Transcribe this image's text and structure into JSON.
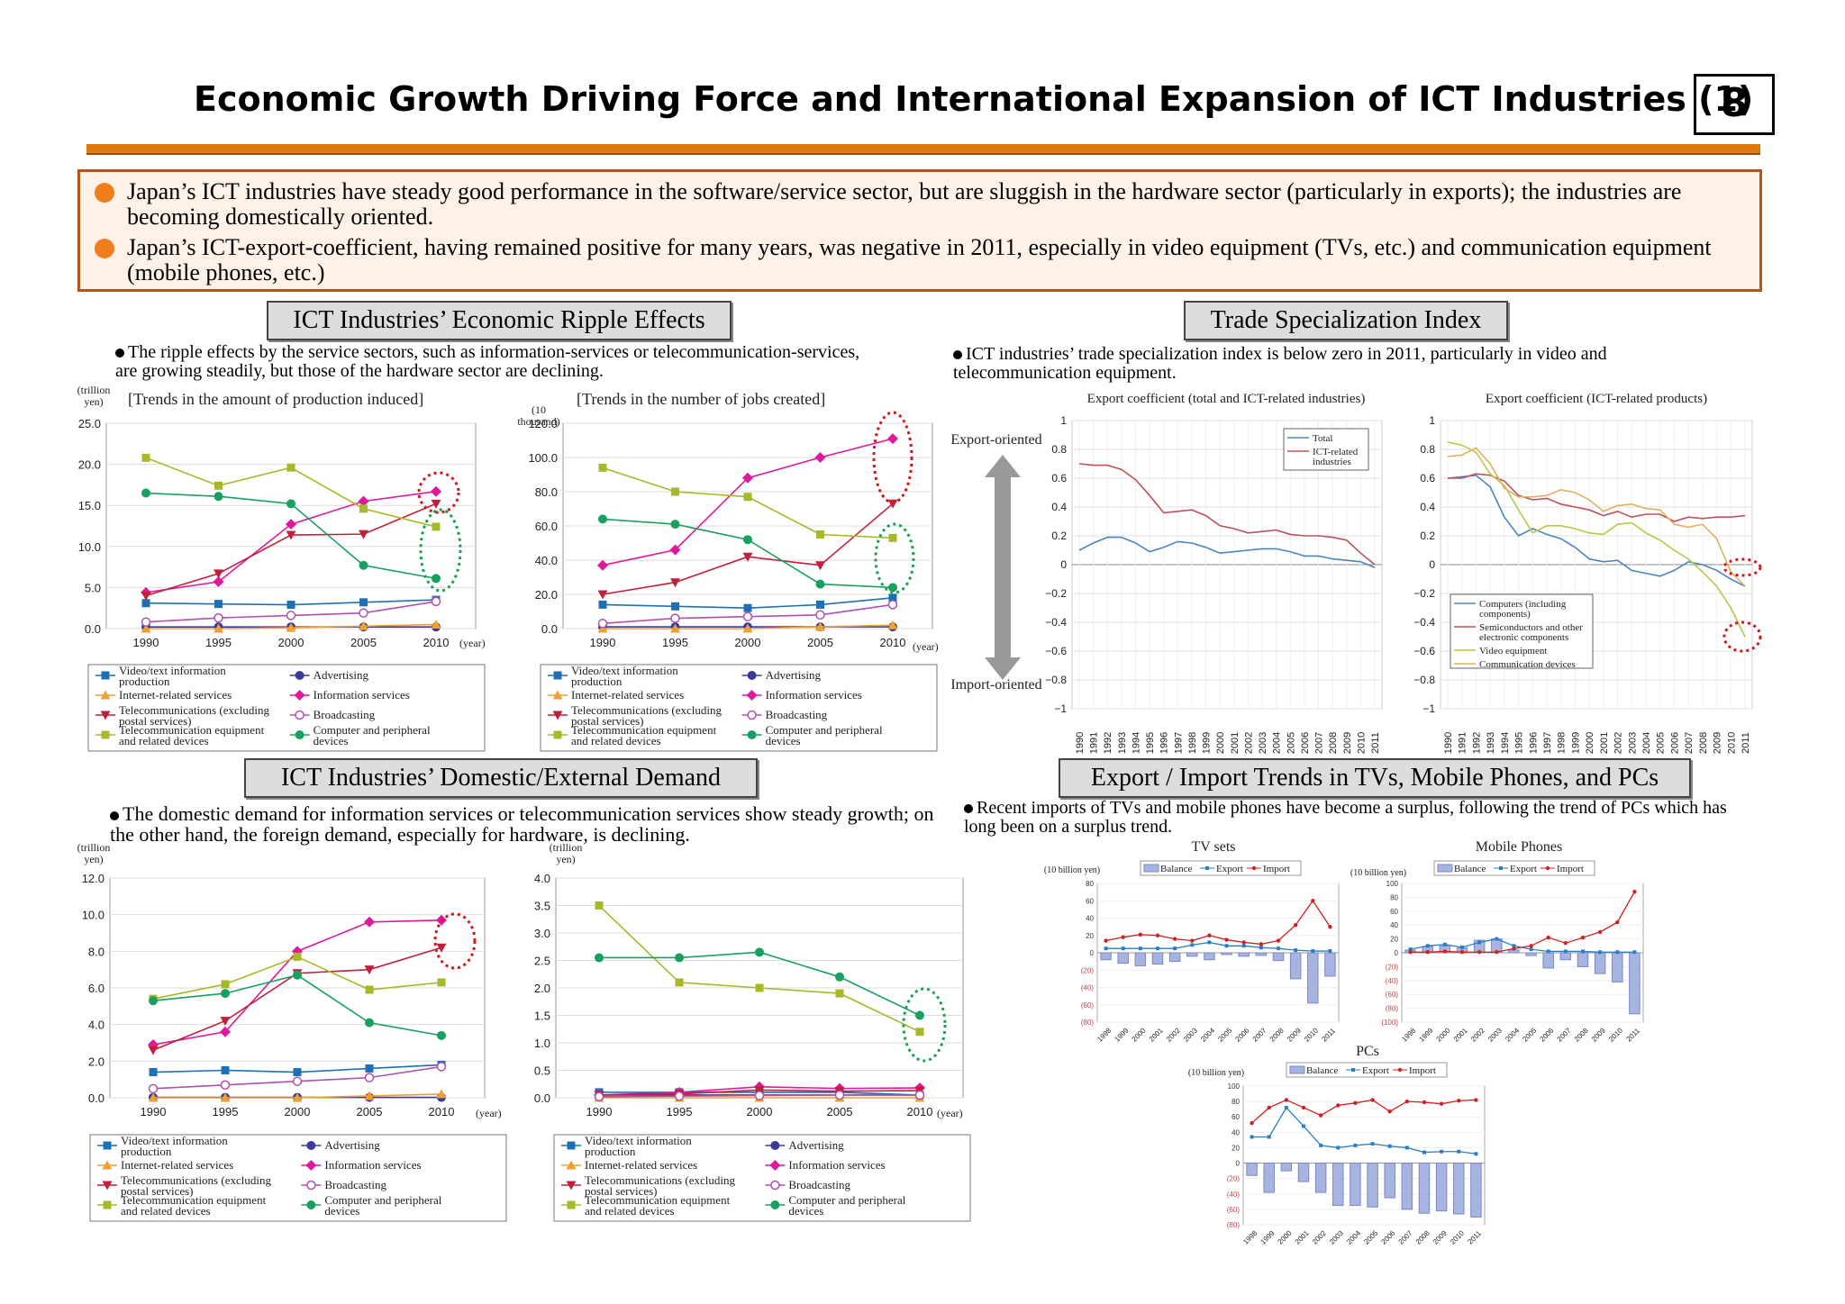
{
  "title": "Economic Growth Driving Force and International Expansion of ICT Industries (1)",
  "page_number": "8",
  "summary": [
    "Japan’s ICT industries have steady good performance in the software/service sector, but are sluggish in the hardware sector (particularly in exports); the industries are becoming domestically oriented.",
    "Japan’s ICT-export-coefficient, having remained positive for many years, was negative in 2011, especially in video equipment (TVs, etc.) and communication equipment (mobile phones, etc.)"
  ],
  "sections": {
    "ripple": {
      "heading": "ICT Industries’ Economic Ripple Effects",
      "note": "The ripple effects by the service sectors, such as information-services or telecommunication-services, are growing steadily, but those of the hardware sector are declining."
    },
    "trade": {
      "heading": "Trade Specialization Index",
      "note": "ICT industries’ trade specialization index is below zero in 2011, particularly in video and telecommunication equipment.",
      "export_oriented": "Export-oriented",
      "import_oriented": "Import-oriented"
    },
    "demand": {
      "heading": "ICT Industries’ Domestic/External Demand",
      "note": "The domestic demand for information services or telecommunication services show steady growth; on the other hand, the foreign demand, especially for hardware, is declining."
    },
    "trends": {
      "heading": "Export / Import Trends in TVs, Mobile Phones, and PCs",
      "note": "Recent imports of TVs and mobile phones have become a surplus, following the trend of PCs which has long been on a surplus trend."
    }
  },
  "legend_sectors": [
    {
      "label": "Video/text information production",
      "color": "#1f6fb5",
      "marker": "square"
    },
    {
      "label": "Advertising",
      "color": "#3a3aa0",
      "marker": "circle"
    },
    {
      "label": "Internet-related services",
      "color": "#f0a030",
      "marker": "triangle"
    },
    {
      "label": "Information services",
      "color": "#e0199a",
      "marker": "diamond"
    },
    {
      "label": "Telecommunications (excluding postal services)",
      "color": "#c0203a",
      "marker": "tridown"
    },
    {
      "label": "Broadcasting",
      "color": "#b050b0",
      "marker": "opencircle"
    },
    {
      "label": "Telecommunication equipment and related devices",
      "color": "#a8b828",
      "marker": "square"
    },
    {
      "label": "Computer and peripheral devices",
      "color": "#18a060",
      "marker": "circle"
    }
  ],
  "chart_data": [
    {
      "id": "production",
      "type": "line",
      "title": "[Trends in the amount of production induced]",
      "unit": "(trillion yen)",
      "xlabel": "(year)",
      "x": [
        1990,
        1995,
        2000,
        2005,
        2010
      ],
      "ylim": [
        0,
        25
      ],
      "yticks": [
        "0.0",
        "5.0",
        "10.0",
        "15.0",
        "20.0",
        "25.0"
      ],
      "series": [
        {
          "name": "Video/text information production",
          "values": [
            3.1,
            3.0,
            2.9,
            3.2,
            3.5
          ]
        },
        {
          "name": "Advertising",
          "values": [
            0.2,
            0.2,
            0.2,
            0.2,
            0.2
          ]
        },
        {
          "name": "Internet-related services",
          "values": [
            0,
            0,
            0.1,
            0.3,
            0.5
          ]
        },
        {
          "name": "Information services",
          "values": [
            4.4,
            5.7,
            12.7,
            15.5,
            16.7
          ]
        },
        {
          "name": "Telecommunications (excluding postal services)",
          "values": [
            4.0,
            6.7,
            11.4,
            11.5,
            15.2
          ]
        },
        {
          "name": "Broadcasting",
          "values": [
            0.8,
            1.3,
            1.6,
            1.9,
            3.3
          ]
        },
        {
          "name": "Telecommunication equipment and related devices",
          "values": [
            20.8,
            17.4,
            19.6,
            14.6,
            12.4
          ]
        },
        {
          "name": "Computer and peripheral devices",
          "values": [
            16.5,
            16.1,
            15.2,
            7.7,
            6.1
          ]
        }
      ]
    },
    {
      "id": "jobs",
      "type": "line",
      "title": "[Trends in the number of jobs created]",
      "unit": "(10 thousand)",
      "xlabel": "(year)",
      "x": [
        1990,
        1995,
        2000,
        2005,
        2010
      ],
      "ylim": [
        0,
        120
      ],
      "yticks": [
        "0.0",
        "20.0",
        "40.0",
        "60.0",
        "80.0",
        "100.0",
        "120.0"
      ],
      "series": [
        {
          "name": "Video/text information production",
          "values": [
            14,
            13,
            12,
            14,
            18
          ]
        },
        {
          "name": "Advertising",
          "values": [
            1,
            1,
            1,
            1,
            1
          ]
        },
        {
          "name": "Internet-related services",
          "values": [
            0,
            0,
            0,
            1,
            2
          ]
        },
        {
          "name": "Information services",
          "values": [
            37,
            46,
            88,
            100,
            111
          ]
        },
        {
          "name": "Telecommunications (excluding postal services)",
          "values": [
            20,
            27,
            42,
            37,
            73
          ]
        },
        {
          "name": "Broadcasting",
          "values": [
            3,
            6,
            7,
            8,
            14
          ]
        },
        {
          "name": "Telecommunication equipment and related devices",
          "values": [
            94,
            80,
            77,
            55,
            53
          ]
        },
        {
          "name": "Computer and peripheral devices",
          "values": [
            64,
            61,
            52,
            26,
            24
          ]
        }
      ]
    },
    {
      "id": "tsi-total",
      "type": "line",
      "title": "Export coefficient (total and ICT-related industries)",
      "x": [
        "1990",
        "1991",
        "1992",
        "1993",
        "1994",
        "1995",
        "1996",
        "1997",
        "1998",
        "1999",
        "2000",
        "2001",
        "2002",
        "2003",
        "2004",
        "2005",
        "2006",
        "2007",
        "2008",
        "2009",
        "2010",
        "2011"
      ],
      "ylim": [
        -1,
        1
      ],
      "yticks": [
        "−1",
        "−0.8",
        "−0.6",
        "−0.4",
        "−0.2",
        "0",
        "0.2",
        "0.4",
        "0.6",
        "0.8",
        "1"
      ],
      "series": [
        {
          "name": "Total",
          "color": "#4a86c0",
          "values": [
            0.1,
            0.15,
            0.19,
            0.19,
            0.15,
            0.09,
            0.12,
            0.16,
            0.15,
            0.12,
            0.08,
            0.09,
            0.1,
            0.11,
            0.11,
            0.09,
            0.06,
            0.06,
            0.04,
            0.03,
            0.02,
            -0.02
          ]
        },
        {
          "name": "ICT-related industries",
          "color": "#c0505a",
          "values": [
            0.7,
            0.69,
            0.69,
            0.66,
            0.59,
            0.48,
            0.36,
            0.37,
            0.38,
            0.34,
            0.27,
            0.25,
            0.22,
            0.23,
            0.24,
            0.21,
            0.2,
            0.2,
            0.19,
            0.17,
            0.08,
            0.0
          ]
        }
      ]
    },
    {
      "id": "tsi-products",
      "type": "line",
      "title": "Export coefficient (ICT-related products)",
      "x": [
        "1990",
        "1991",
        "1992",
        "1993",
        "1994",
        "1995",
        "1996",
        "1997",
        "1998",
        "1999",
        "2000",
        "2001",
        "2002",
        "2003",
        "2004",
        "2005",
        "2006",
        "2007",
        "2008",
        "2009",
        "2010",
        "2011"
      ],
      "ylim": [
        -1,
        1
      ],
      "yticks": [
        "−1",
        "−0.8",
        "−0.6",
        "−0.4",
        "−0.2",
        "0",
        "0.2",
        "0.4",
        "0.6",
        "0.8",
        "1"
      ],
      "series": [
        {
          "name": "Computers (including components)",
          "color": "#4a86c0",
          "values": [
            0.6,
            0.61,
            0.62,
            0.54,
            0.33,
            0.2,
            0.25,
            0.21,
            0.18,
            0.12,
            0.04,
            0.02,
            0.03,
            -0.04,
            -0.06,
            -0.08,
            -0.04,
            0.02,
            0.0,
            -0.04,
            -0.1,
            -0.15
          ]
        },
        {
          "name": "Semiconductors and other electronic components",
          "color": "#c0505a",
          "values": [
            0.6,
            0.6,
            0.63,
            0.62,
            0.58,
            0.48,
            0.45,
            0.46,
            0.42,
            0.4,
            0.38,
            0.34,
            0.37,
            0.33,
            0.35,
            0.35,
            0.3,
            0.33,
            0.32,
            0.33,
            0.33,
            0.34
          ]
        },
        {
          "name": "Video equipment",
          "color": "#b8c848",
          "values": [
            0.85,
            0.83,
            0.78,
            0.63,
            0.55,
            0.38,
            0.22,
            0.27,
            0.27,
            0.25,
            0.22,
            0.21,
            0.28,
            0.29,
            0.22,
            0.17,
            0.1,
            0.04,
            -0.05,
            -0.15,
            -0.3,
            -0.5
          ]
        },
        {
          "name": "Communication devices",
          "color": "#e0b060",
          "values": [
            0.75,
            0.76,
            0.81,
            0.7,
            0.53,
            0.47,
            0.47,
            0.48,
            0.52,
            0.5,
            0.45,
            0.37,
            0.41,
            0.42,
            0.39,
            0.38,
            0.28,
            0.26,
            0.28,
            0.18,
            -0.05,
            -0.15
          ]
        }
      ]
    },
    {
      "id": "domestic",
      "type": "line",
      "unit": "(trillion yen)",
      "xlabel": "(year)",
      "x": [
        1990,
        1995,
        2000,
        2005,
        2010
      ],
      "ylim": [
        0,
        12
      ],
      "yticks": [
        "0.0",
        "2.0",
        "4.0",
        "6.0",
        "8.0",
        "10.0",
        "12.0"
      ],
      "series": [
        {
          "name": "Video/text information production",
          "values": [
            1.4,
            1.5,
            1.4,
            1.6,
            1.8
          ]
        },
        {
          "name": "Advertising",
          "values": [
            0.02,
            0.02,
            0.02,
            0.02,
            0.02
          ]
        },
        {
          "name": "Internet-related services",
          "values": [
            0,
            0,
            0,
            0.1,
            0.2
          ]
        },
        {
          "name": "Information services",
          "values": [
            2.9,
            3.6,
            8.0,
            9.6,
            9.7
          ]
        },
        {
          "name": "Telecommunications (excluding postal services)",
          "values": [
            2.6,
            4.2,
            6.8,
            7.0,
            8.2
          ]
        },
        {
          "name": "Broadcasting",
          "values": [
            0.5,
            0.7,
            0.9,
            1.1,
            1.7
          ]
        },
        {
          "name": "Telecommunication equipment and related devices",
          "values": [
            5.4,
            6.2,
            7.7,
            5.9,
            6.3
          ]
        },
        {
          "name": "Computer and peripheral devices",
          "values": [
            5.3,
            5.7,
            6.7,
            4.1,
            3.4
          ]
        }
      ]
    },
    {
      "id": "external",
      "type": "line",
      "unit": "(trillion yen)",
      "xlabel": "(year)",
      "x": [
        1990,
        1995,
        2000,
        2005,
        2010
      ],
      "ylim": [
        0,
        4
      ],
      "yticks": [
        "0.0",
        "0.5",
        "1.0",
        "1.5",
        "2.0",
        "2.5",
        "3.0",
        "3.5",
        "4.0"
      ],
      "series": [
        {
          "name": "Video/text information production",
          "values": [
            0.1,
            0.1,
            0.1,
            0.1,
            0.05
          ]
        },
        {
          "name": "Advertising",
          "values": [
            0.05,
            0.05,
            0.05,
            0.05,
            0.05
          ]
        },
        {
          "name": "Internet-related services",
          "values": [
            0,
            0,
            0,
            0,
            0
          ]
        },
        {
          "name": "Information services",
          "values": [
            0.05,
            0.1,
            0.2,
            0.17,
            0.18
          ]
        },
        {
          "name": "Telecommunications (excluding postal services)",
          "values": [
            0.05,
            0.07,
            0.14,
            0.12,
            0.13
          ]
        },
        {
          "name": "Broadcasting",
          "values": [
            0.02,
            0.03,
            0.04,
            0.05,
            0.05
          ]
        },
        {
          "name": "Telecommunication equipment and related devices",
          "values": [
            3.5,
            2.1,
            2.0,
            1.9,
            1.2
          ]
        },
        {
          "name": "Computer and peripheral devices",
          "values": [
            2.55,
            2.55,
            2.65,
            2.2,
            1.5
          ]
        }
      ]
    },
    {
      "id": "tv",
      "type": "bar",
      "title": "TV sets",
      "unit": "(10 billion yen)",
      "x": [
        "1998",
        "1999",
        "2000",
        "2001",
        "2002",
        "2003",
        "2004",
        "2005",
        "2006",
        "2007",
        "2008",
        "2009",
        "2010",
        "2011"
      ],
      "ylim": [
        -80,
        80
      ],
      "yticks": [
        "(80)",
        "(60)",
        "(40)",
        "(20)",
        "0",
        "20",
        "40",
        "60",
        "80"
      ],
      "series": [
        {
          "name": "Balance",
          "values": [
            -8,
            -12,
            -15,
            -13,
            -10,
            -4,
            -8,
            -2,
            -4,
            -3,
            -9,
            -30,
            -58,
            -27
          ]
        },
        {
          "name": "Export",
          "values": [
            5,
            5,
            5,
            5,
            5,
            9,
            12,
            8,
            8,
            6,
            5,
            3,
            2,
            2
          ]
        },
        {
          "name": "Import",
          "values": [
            14,
            18,
            21,
            20,
            16,
            14,
            20,
            15,
            12,
            10,
            14,
            32,
            60,
            30
          ]
        }
      ]
    },
    {
      "id": "mobile",
      "type": "bar",
      "title": "Mobile Phones",
      "unit": "(10 billion yen)",
      "x": [
        "1998",
        "1999",
        "2000",
        "2001",
        "2002",
        "2003",
        "2004",
        "2005",
        "2006",
        "2007",
        "2008",
        "2009",
        "2010",
        "2011"
      ],
      "ylim": [
        -100,
        100
      ],
      "yticks": [
        "(100)",
        "(80)",
        "(60)",
        "(40)",
        "(20)",
        "0",
        "20",
        "40",
        "60",
        "80",
        "100"
      ],
      "series": [
        {
          "name": "Balance",
          "values": [
            4,
            9,
            10,
            7,
            18,
            20,
            4,
            -4,
            -22,
            -10,
            -20,
            -30,
            -42,
            -88
          ]
        },
        {
          "name": "Export",
          "values": [
            5,
            10,
            12,
            8,
            15,
            20,
            10,
            5,
            2,
            2,
            2,
            1,
            1,
            1
          ]
        },
        {
          "name": "Import",
          "values": [
            1,
            1,
            2,
            1,
            1,
            1,
            6,
            10,
            22,
            14,
            22,
            30,
            44,
            88
          ]
        }
      ]
    },
    {
      "id": "pc",
      "type": "bar",
      "title": "PCs",
      "unit": "(10 billion yen)",
      "x": [
        "1998",
        "1999",
        "2000",
        "2001",
        "2002",
        "2003",
        "2004",
        "2005",
        "2006",
        "2007",
        "2008",
        "2009",
        "2010",
        "2011"
      ],
      "ylim": [
        -80,
        100
      ],
      "yticks": [
        "(80)",
        "(60)",
        "(40)",
        "(20)",
        "0",
        "20",
        "40",
        "60",
        "80",
        "100"
      ],
      "series": [
        {
          "name": "Balance",
          "values": [
            -16,
            -38,
            -10,
            -24,
            -38,
            -55,
            -55,
            -57,
            -45,
            -60,
            -65,
            -62,
            -66,
            -70
          ]
        },
        {
          "name": "Export",
          "values": [
            34,
            34,
            72,
            48,
            23,
            20,
            23,
            25,
            22,
            20,
            14,
            15,
            15,
            12
          ]
        },
        {
          "name": "Import",
          "values": [
            52,
            72,
            82,
            72,
            62,
            75,
            78,
            82,
            67,
            80,
            79,
            77,
            81,
            82
          ]
        }
      ]
    }
  ],
  "trade_legend": {
    "balance": "Balance",
    "export": "Export",
    "import": "Import"
  }
}
